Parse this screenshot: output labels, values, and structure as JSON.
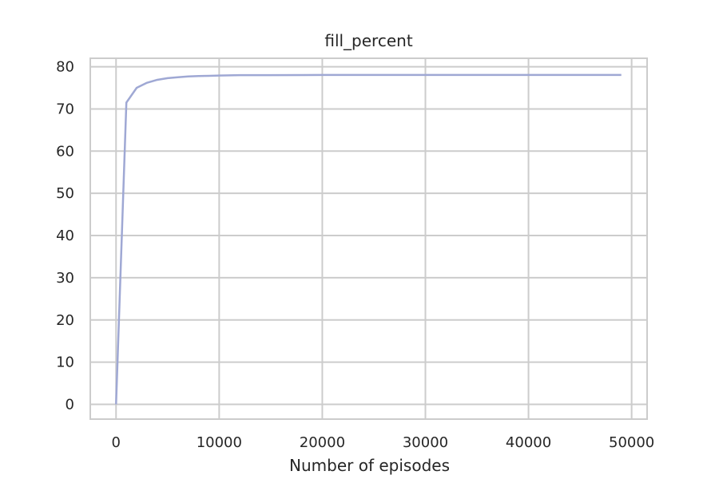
{
  "chart_data": {
    "type": "line",
    "title": "fill_percent",
    "xlabel": "Number of episodes",
    "ylabel": "",
    "xlim": [
      -2500,
      51500
    ],
    "ylim": [
      -3.5,
      82
    ],
    "xticks": [
      0,
      10000,
      20000,
      30000,
      40000,
      50000
    ],
    "xtick_labels": [
      "0",
      "10000",
      "20000",
      "30000",
      "40000",
      "50000"
    ],
    "yticks": [
      0,
      10,
      20,
      30,
      40,
      50,
      60,
      70,
      80
    ],
    "ytick_labels": [
      "0",
      "10",
      "20",
      "30",
      "40",
      "50",
      "60",
      "70",
      "80"
    ],
    "grid": true,
    "series": [
      {
        "color": "#9fa8d4",
        "x": [
          0,
          1000,
          2000,
          3000,
          4000,
          5000,
          6000,
          7000,
          8000,
          9000,
          10000,
          12000,
          15000,
          20000,
          25000,
          30000,
          35000,
          40000,
          45000,
          49000
        ],
        "y": [
          0,
          71.5,
          75.0,
          76.2,
          76.9,
          77.3,
          77.5,
          77.7,
          77.8,
          77.85,
          77.9,
          78.0,
          78.0,
          78.05,
          78.05,
          78.05,
          78.05,
          78.05,
          78.05,
          78.05
        ]
      }
    ]
  }
}
